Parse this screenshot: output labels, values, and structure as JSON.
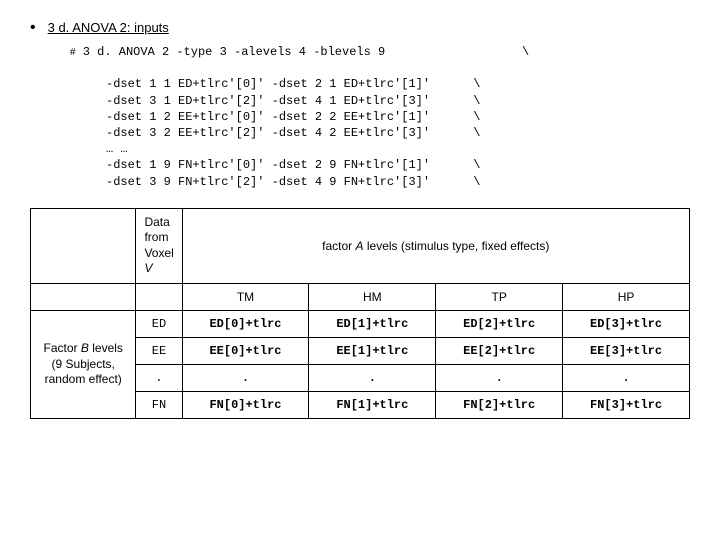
{
  "title_prefix": "3 d. ANOVA 2",
  "title_suffix": ": inputs",
  "code": {
    "l0a": "3 d. ANOVA 2 -type 3 -alevels 4 -blevels 9",
    "bs": "\\",
    "l1": "     -dset 1 1 ED+tlrc'[0]' -dset 2 1 ED+tlrc'[1]'",
    "l2": "     -dset 3 1 ED+tlrc'[2]' -dset 4 1 ED+tlrc'[3]'",
    "l3": "     -dset 1 2 EE+tlrc'[0]' -dset 2 2 EE+tlrc'[1]'",
    "l4": "     -dset 3 2 EE+tlrc'[2]' -dset 4 2 EE+tlrc'[3]'",
    "l5": "     … …",
    "l6": "     -dset 1 9 FN+tlrc'[0]' -dset 2 9 FN+tlrc'[1]'",
    "l7": "     -dset 3 9 FN+tlrc'[2]' -dset 4 9 FN+tlrc'[3]'"
  },
  "table": {
    "data_from_l1": "Data",
    "data_from_l2": "from",
    "data_from_l3": "Voxel",
    "data_from_l4": "V",
    "factor_a_pre": "factor ",
    "factor_a_mid": "A",
    "factor_a_post": " levels (stimulus type, fixed effects)",
    "col_tm": "TM",
    "col_hm": "HM",
    "col_tp": "TP",
    "col_hp": "HP",
    "row_label_l1a": "Factor ",
    "row_label_l1b": "B",
    "row_label_l1c": " levels",
    "row_label_l2": "(9 Subjects,",
    "row_label_l3": "random effect)",
    "r_ed": "ED",
    "r_ee": "EE",
    "r_dot": ".",
    "r_fn": "FN",
    "ed0": "ED[0]+tlrc",
    "ed1": "ED[1]+tlrc",
    "ed2": "ED[2]+tlrc",
    "ed3": "ED[3]+tlrc",
    "ee0": "EE[0]+tlrc",
    "ee1": "EE[1]+tlrc",
    "ee2": "EE[2]+tlrc",
    "ee3": "EE[3]+tlrc",
    "dot": ".",
    "fn0": "FN[0]+tlrc",
    "fn1": "FN[1]+tlrc",
    "fn2": "FN[2]+tlrc",
    "fn3": "FN[3]+tlrc"
  }
}
